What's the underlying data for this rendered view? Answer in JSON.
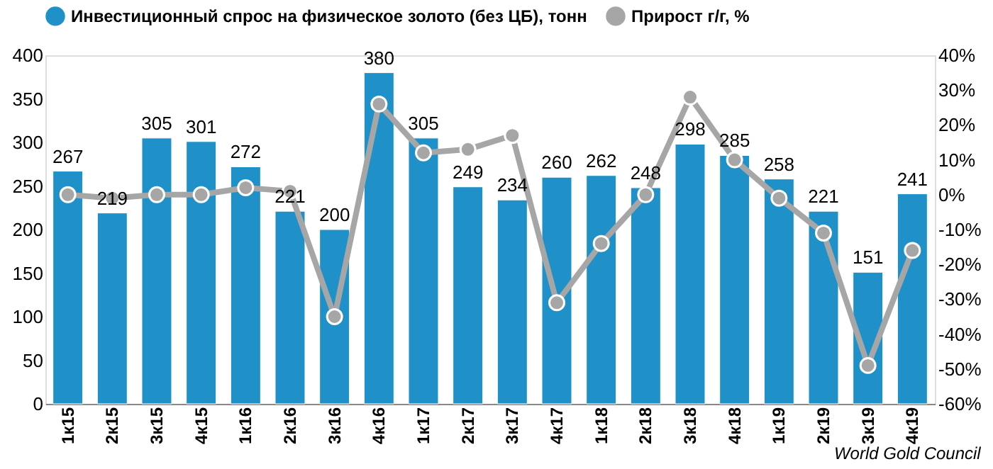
{
  "chart_data": {
    "type": "bar",
    "categories": [
      "1к15",
      "2к15",
      "3к15",
      "4к15",
      "1к16",
      "2к16",
      "3к16",
      "4к16",
      "1к17",
      "2к17",
      "3к17",
      "4к17",
      "1к18",
      "2к18",
      "3к18",
      "4к18",
      "1к19",
      "2к19",
      "3к19",
      "4к19"
    ],
    "series": [
      {
        "name": "Инвестиционный спрос на физическое золото (без ЦБ), тонн",
        "color": "#1f91c8",
        "values": [
          267,
          219,
          305,
          301,
          272,
          221,
          200,
          380,
          305,
          249,
          234,
          260,
          262,
          248,
          298,
          285,
          258,
          221,
          151,
          241
        ],
        "value_labels": [
          "267",
          "219",
          "305",
          "301",
          "272",
          "221",
          "200",
          "380",
          "305",
          "249",
          "234",
          "260",
          "262",
          "248",
          "298",
          "285",
          "258",
          "221",
          "151",
          "241"
        ]
      },
      {
        "name": "Прирост г/г, %",
        "color": "#a6a6a6",
        "type": "line",
        "axis": "y2",
        "marker": "circle",
        "values": [
          0,
          -1,
          0,
          0,
          2,
          1,
          -35,
          26,
          12,
          13,
          17,
          -31,
          -14,
          0,
          28,
          10,
          -1,
          -11,
          -49,
          -16
        ]
      }
    ],
    "ylim": [
      0,
      400
    ],
    "yticks": [
      0,
      50,
      100,
      150,
      200,
      250,
      300,
      350,
      400
    ],
    "y2lim": [
      -60,
      40
    ],
    "y2ticks": [
      {
        "value": -60,
        "label": "-60%"
      },
      {
        "value": -50,
        "label": "-50%"
      },
      {
        "value": -40,
        "label": "-40%"
      },
      {
        "value": -30,
        "label": "-30%"
      },
      {
        "value": -20,
        "label": "-20%"
      },
      {
        "value": -10,
        "label": "-10%"
      },
      {
        "value": 0,
        "label": "0%"
      },
      {
        "value": 10,
        "label": "10%"
      },
      {
        "value": 20,
        "label": "20%"
      },
      {
        "value": 30,
        "label": "30%"
      },
      {
        "value": 40,
        "label": "40%"
      }
    ],
    "grid": false,
    "legend": "top",
    "annotations": [
      "World Gold Council"
    ]
  }
}
